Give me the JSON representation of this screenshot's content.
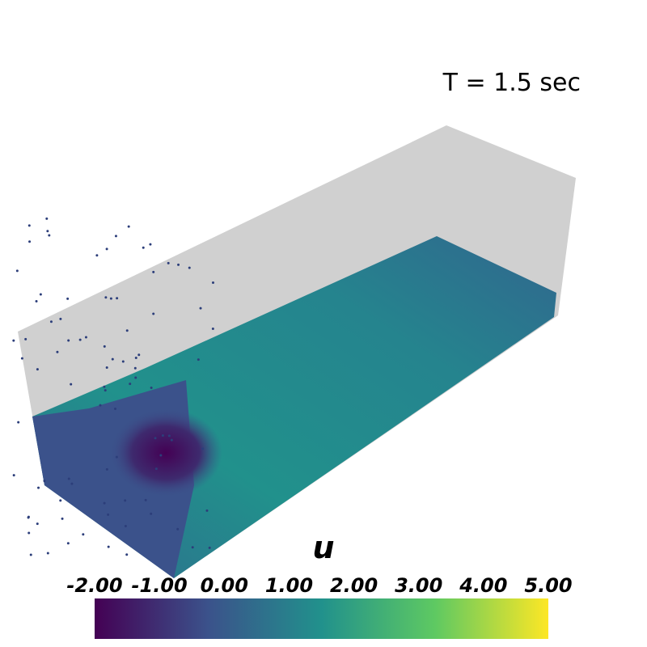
{
  "annotation": "T = 1.5 sec",
  "colorbar": {
    "title": "u",
    "range": [
      -2,
      5
    ],
    "ticks": [
      {
        "value": -2,
        "label": "-2.00"
      },
      {
        "value": -1,
        "label": "-1.00"
      },
      {
        "value": 0,
        "label": "0.00"
      },
      {
        "value": 1,
        "label": "1.00"
      },
      {
        "value": 2,
        "label": "2.00"
      },
      {
        "value": 3,
        "label": "3.00"
      },
      {
        "value": 4,
        "label": "4.00"
      },
      {
        "value": 5,
        "label": "5.00"
      }
    ],
    "colors": [
      "#440154",
      "#3b528b",
      "#21918c",
      "#5ec962",
      "#fde725"
    ]
  }
}
